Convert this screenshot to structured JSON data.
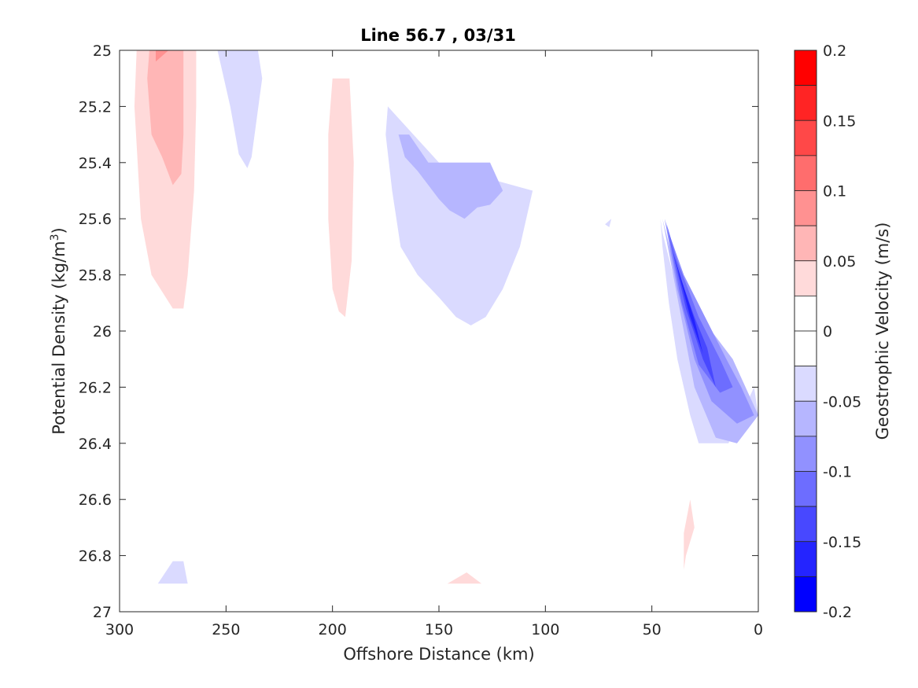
{
  "chart_data": {
    "type": "contour",
    "title": "Line 56.7 , 03/31",
    "xlabel": "Offshore Distance (km)",
    "ylabel_prefix": "Potential Density (kg/m",
    "ylabel_sup": "3",
    "ylabel_suffix": ")",
    "xlim": [
      300,
      0
    ],
    "ylim": [
      25,
      27
    ],
    "y_reversed": true,
    "x_ticks": [
      300,
      250,
      200,
      150,
      100,
      50,
      0
    ],
    "y_ticks": [
      25,
      25.2,
      25.4,
      25.6,
      25.8,
      26,
      26.2,
      26.4,
      26.6,
      26.8,
      27
    ],
    "x_tick_labels": [
      "300",
      "250",
      "200",
      "150",
      "100",
      "50",
      "0"
    ],
    "y_tick_labels": [
      "25",
      "25.2",
      "25.4",
      "25.6",
      "25.8",
      "26",
      "26.2",
      "26.4",
      "26.6",
      "26.8",
      "27"
    ],
    "grid": false,
    "colorbar": {
      "label": "Geostrophic Velocity (m/s)",
      "range": [
        -0.2,
        0.2
      ],
      "ticks": [
        0.2,
        0.15,
        0.1,
        0.05,
        0,
        -0.05,
        -0.1,
        -0.15,
        -0.2
      ],
      "tick_labels": [
        "0.2",
        "0.15",
        "0.1",
        "0.05",
        "0",
        "-0.05",
        "-0.1",
        "-0.15",
        "-0.2"
      ],
      "bands": [
        {
          "min": 0.175,
          "max": 0.2,
          "color": "#ff0000"
        },
        {
          "min": 0.15,
          "max": 0.175,
          "color": "#ff2424"
        },
        {
          "min": 0.125,
          "max": 0.15,
          "color": "#ff4848"
        },
        {
          "min": 0.1,
          "max": 0.125,
          "color": "#ff6d6d"
        },
        {
          "min": 0.075,
          "max": 0.1,
          "color": "#ff9191"
        },
        {
          "min": 0.05,
          "max": 0.075,
          "color": "#ffb6b6"
        },
        {
          "min": 0.025,
          "max": 0.05,
          "color": "#ffdada"
        },
        {
          "min": 0,
          "max": 0.025,
          "color": "#ffffff"
        },
        {
          "min": -0.025,
          "max": 0,
          "color": "#ffffff"
        },
        {
          "min": -0.05,
          "max": -0.025,
          "color": "#dadaff"
        },
        {
          "min": -0.075,
          "max": -0.05,
          "color": "#b6b6ff"
        },
        {
          "min": -0.1,
          "max": -0.075,
          "color": "#9191ff"
        },
        {
          "min": -0.125,
          "max": -0.1,
          "color": "#6d6dff"
        },
        {
          "min": -0.15,
          "max": -0.125,
          "color": "#4848ff"
        },
        {
          "min": -0.175,
          "max": -0.15,
          "color": "#2424ff"
        },
        {
          "min": -0.2,
          "max": -0.175,
          "color": "#0000ff"
        }
      ]
    },
    "regions": [
      {
        "name": "pos-a-outer",
        "level": 0.025,
        "color": "#ffdada",
        "points": [
          [
            292,
            25
          ],
          [
            264,
            25
          ],
          [
            264,
            25.2
          ],
          [
            265,
            25.5
          ],
          [
            268,
            25.8
          ],
          [
            270,
            25.92
          ],
          [
            275,
            25.92
          ],
          [
            285,
            25.8
          ],
          [
            290,
            25.6
          ],
          [
            293,
            25.2
          ]
        ]
      },
      {
        "name": "pos-a-inner",
        "level": 0.05,
        "color": "#ffb6b6",
        "points": [
          [
            286,
            25
          ],
          [
            270,
            25
          ],
          [
            270,
            25.3
          ],
          [
            271,
            25.44
          ],
          [
            275,
            25.48
          ],
          [
            280,
            25.38
          ],
          [
            285,
            25.3
          ],
          [
            287,
            25.1
          ]
        ]
      },
      {
        "name": "pos-a-core",
        "level": 0.075,
        "color": "#ff9191",
        "points": [
          [
            283,
            25
          ],
          [
            277,
            25
          ],
          [
            280,
            25.02
          ],
          [
            283,
            25.04
          ]
        ]
      },
      {
        "name": "pos-b",
        "level": 0.025,
        "color": "#ffdada",
        "points": [
          [
            200,
            25.1
          ],
          [
            192,
            25.1
          ],
          [
            190,
            25.4
          ],
          [
            191,
            25.75
          ],
          [
            194,
            25.95
          ],
          [
            197,
            25.93
          ],
          [
            200,
            25.85
          ],
          [
            202,
            25.6
          ],
          [
            202,
            25.3
          ]
        ]
      },
      {
        "name": "pos-c",
        "level": 0.025,
        "color": "#ffdada",
        "points": [
          [
            32,
            26.6
          ],
          [
            30,
            26.7
          ],
          [
            34,
            26.8
          ],
          [
            35,
            26.85
          ],
          [
            35,
            26.72
          ]
        ]
      },
      {
        "name": "pos-d",
        "level": 0.025,
        "color": "#ffdada",
        "points": [
          [
            146,
            26.9
          ],
          [
            137,
            26.86
          ],
          [
            130,
            26.9
          ]
        ]
      },
      {
        "name": "neg-a",
        "level": -0.025,
        "color": "#dadaff",
        "points": [
          [
            254,
            25
          ],
          [
            235,
            25
          ],
          [
            233,
            25.1
          ],
          [
            238,
            25.38
          ],
          [
            240,
            25.42
          ],
          [
            244,
            25.37
          ],
          [
            248,
            25.2
          ]
        ]
      },
      {
        "name": "neg-a-dent",
        "level": -0.025,
        "color": "#dadaff",
        "points": [
          [
            246,
            25
          ],
          [
            244,
            25.03
          ],
          [
            242,
            25
          ]
        ]
      },
      {
        "name": "neg-b-outer",
        "level": -0.025,
        "color": "#dadaff",
        "points": [
          [
            174,
            25.2
          ],
          [
            162,
            25.3
          ],
          [
            150,
            25.4
          ],
          [
            130,
            25.45
          ],
          [
            106,
            25.5
          ],
          [
            112,
            25.7
          ],
          [
            120,
            25.85
          ],
          [
            128,
            25.95
          ],
          [
            135,
            25.98
          ],
          [
            142,
            25.95
          ],
          [
            150,
            25.88
          ],
          [
            160,
            25.8
          ],
          [
            168,
            25.7
          ],
          [
            172,
            25.5
          ],
          [
            175,
            25.3
          ]
        ]
      },
      {
        "name": "neg-b-inner",
        "level": -0.05,
        "color": "#b6b6ff",
        "points": [
          [
            164,
            25.3
          ],
          [
            155,
            25.4
          ],
          [
            126,
            25.4
          ],
          [
            120,
            25.5
          ],
          [
            126,
            25.55
          ],
          [
            132,
            25.56
          ],
          [
            138,
            25.6
          ],
          [
            145,
            25.57
          ],
          [
            150,
            25.53
          ],
          [
            155,
            25.48
          ],
          [
            160,
            25.43
          ],
          [
            166,
            25.38
          ],
          [
            169,
            25.3
          ]
        ]
      },
      {
        "name": "neg-c-1",
        "level": -0.025,
        "color": "#dadaff",
        "points": [
          [
            46,
            25.6
          ],
          [
            45,
            25.7
          ],
          [
            42,
            25.9
          ],
          [
            38,
            26.1
          ],
          [
            32,
            26.3
          ],
          [
            28,
            26.4
          ],
          [
            14,
            26.4
          ],
          [
            8,
            26.3
          ],
          [
            2,
            26.2
          ],
          [
            0,
            26.3
          ],
          [
            10,
            26.4
          ],
          [
            20,
            26.38
          ],
          [
            40,
            25.8
          ],
          [
            45,
            25.65
          ]
        ]
      },
      {
        "name": "neg-c-2",
        "level": -0.05,
        "color": "#b6b6ff",
        "points": [
          [
            45,
            25.6
          ],
          [
            40,
            25.8
          ],
          [
            35,
            26.0
          ],
          [
            30,
            26.2
          ],
          [
            20,
            26.38
          ],
          [
            10,
            26.4
          ],
          [
            2,
            26.32
          ],
          [
            0,
            26.3
          ],
          [
            12,
            26.1
          ],
          [
            22,
            26.0
          ],
          [
            30,
            25.9
          ],
          [
            40,
            25.75
          ]
        ]
      },
      {
        "name": "neg-c-3",
        "level": -0.075,
        "color": "#9191ff",
        "points": [
          [
            44,
            25.6
          ],
          [
            38,
            25.85
          ],
          [
            30,
            26.1
          ],
          [
            22,
            26.25
          ],
          [
            10,
            26.33
          ],
          [
            2,
            26.3
          ],
          [
            8,
            26.2
          ],
          [
            15,
            26.1
          ],
          [
            25,
            25.95
          ],
          [
            35,
            25.8
          ],
          [
            42,
            25.65
          ]
        ]
      },
      {
        "name": "neg-c-4",
        "level": -0.1,
        "color": "#6d6dff",
        "points": [
          [
            43,
            25.62
          ],
          [
            36,
            25.9
          ],
          [
            28,
            26.12
          ],
          [
            18,
            26.22
          ],
          [
            12,
            26.2
          ],
          [
            18,
            26.1
          ],
          [
            28,
            25.95
          ],
          [
            38,
            25.75
          ]
        ]
      },
      {
        "name": "neg-c-5",
        "level": -0.125,
        "color": "#4848ff",
        "points": [
          [
            42,
            25.66
          ],
          [
            34,
            25.92
          ],
          [
            26,
            26.1
          ],
          [
            20,
            26.2
          ],
          [
            24,
            26.06
          ],
          [
            30,
            25.95
          ],
          [
            38,
            25.78
          ]
        ]
      },
      {
        "name": "neg-c-6",
        "level": -0.15,
        "color": "#2424ff",
        "points": [
          [
            40,
            25.72
          ],
          [
            32,
            25.95
          ],
          [
            26,
            26.08
          ],
          [
            30,
            25.96
          ],
          [
            36,
            25.82
          ]
        ]
      },
      {
        "name": "neg-d",
        "level": -0.025,
        "color": "#dadaff",
        "points": [
          [
            282,
            26.9
          ],
          [
            268,
            26.9
          ],
          [
            270,
            26.82
          ],
          [
            275,
            26.82
          ]
        ]
      },
      {
        "name": "neg-e",
        "level": -0.025,
        "color": "#dadaff",
        "points": [
          [
            69,
            25.6
          ],
          [
            72,
            25.62
          ],
          [
            70,
            25.63
          ]
        ]
      }
    ]
  }
}
